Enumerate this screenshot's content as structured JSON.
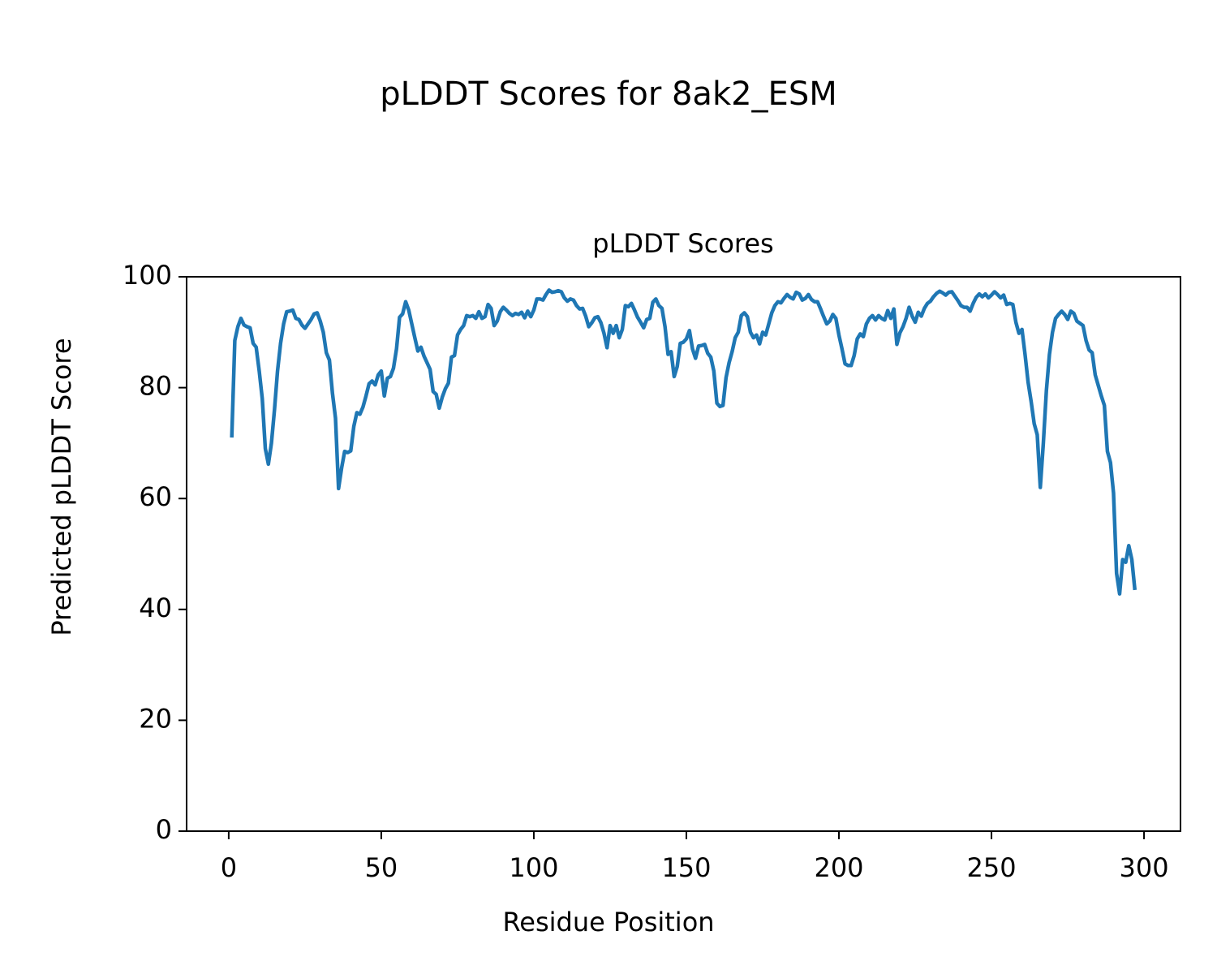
{
  "chart_data": {
    "type": "line",
    "title": "pLDDT Scores for 8ak2_ESM",
    "subtitle": "pLDDT Scores",
    "x_label": "Residue Position",
    "y_label": "Predicted pLDDT Score",
    "x": [
      1,
      2,
      3,
      4,
      5,
      6,
      7,
      8,
      9,
      10,
      11,
      12,
      13,
      14,
      15,
      16,
      17,
      18,
      19,
      20,
      21,
      22,
      23,
      24,
      25,
      26,
      27,
      28,
      29,
      30,
      31,
      32,
      33,
      34,
      35,
      36,
      37,
      38,
      39,
      40,
      41,
      42,
      43,
      44,
      45,
      46,
      47,
      48,
      49,
      50,
      51,
      52,
      53,
      54,
      55,
      56,
      57,
      58,
      59,
      60,
      61,
      62,
      63,
      64,
      65,
      66,
      67,
      68,
      69,
      70,
      71,
      72,
      73,
      74,
      75,
      76,
      77,
      78,
      79,
      80,
      81,
      82,
      83,
      84,
      85,
      86,
      87,
      88,
      89,
      90,
      91,
      92,
      93,
      94,
      95,
      96,
      97,
      98,
      99,
      100,
      101,
      102,
      103,
      104,
      105,
      106,
      107,
      108,
      109,
      110,
      111,
      112,
      113,
      114,
      115,
      116,
      117,
      118,
      119,
      120,
      121,
      122,
      123,
      124,
      125,
      126,
      127,
      128,
      129,
      130,
      131,
      132,
      133,
      134,
      135,
      136,
      137,
      138,
      139,
      140,
      141,
      142,
      143,
      144,
      145,
      146,
      147,
      148,
      149,
      150,
      151,
      152,
      153,
      154,
      155,
      156,
      157,
      158,
      159,
      160,
      161,
      162,
      163,
      164,
      165,
      166,
      167,
      168,
      169,
      170,
      171,
      172,
      173,
      174,
      175,
      176,
      177,
      178,
      179,
      180,
      181,
      182,
      183,
      184,
      185,
      186,
      187,
      188,
      189,
      190,
      191,
      192,
      193,
      194,
      195,
      196,
      197,
      198,
      199,
      200,
      201,
      202,
      203,
      204,
      205,
      206,
      207,
      208,
      209,
      210,
      211,
      212,
      213,
      214,
      215,
      216,
      217,
      218,
      219,
      220,
      221,
      222,
      223,
      224,
      225,
      226,
      227,
      228,
      229,
      230,
      231,
      232,
      233,
      234,
      235,
      236,
      237,
      238,
      239,
      240,
      241,
      242,
      243,
      244,
      245,
      246,
      247,
      248,
      249,
      250,
      251,
      252,
      253,
      254,
      255,
      256,
      257,
      258,
      259,
      260,
      261,
      262,
      263,
      264,
      265,
      266,
      267,
      268,
      269,
      270,
      271,
      272,
      273,
      274,
      275,
      276,
      277,
      278,
      279,
      280,
      281,
      282,
      283,
      284,
      285,
      286,
      287,
      288,
      289,
      290,
      291,
      292,
      293,
      294,
      295,
      296,
      297
    ],
    "series": [
      {
        "color": "#1f77b4",
        "values": [
          71,
          88.5,
          91,
          92.5,
          91.3,
          91,
          90.8,
          88,
          87.3,
          83,
          78,
          69,
          66.2,
          70,
          76,
          83,
          88,
          91.5,
          93.7,
          93.8,
          94,
          92.5,
          92.3,
          91.3,
          90.7,
          91.5,
          92.3,
          93.3,
          93.5,
          92,
          90,
          86.3,
          85,
          79,
          74.5,
          61.8,
          65.5,
          68.5,
          68.3,
          68.6,
          73,
          75.5,
          75.2,
          76.5,
          78.5,
          80.7,
          81.2,
          80.5,
          82.3,
          83,
          78.5,
          81.7,
          82,
          83.5,
          87,
          92.7,
          93.3,
          95.5,
          94,
          91.5,
          89,
          86.6,
          87.3,
          85.7,
          84.5,
          83.3,
          79.3,
          78.8,
          76.3,
          78.3,
          79.8,
          80.8,
          85.5,
          85.8,
          89.5,
          90.5,
          91.2,
          93,
          92.8,
          93,
          92.5,
          93.7,
          92.5,
          92.8,
          95,
          94.3,
          91.2,
          92,
          93.7,
          94.5,
          94,
          93.4,
          93,
          93.4,
          93.2,
          93.6,
          92.6,
          93.8,
          92.8,
          94,
          96,
          96,
          95.8,
          96.8,
          97.6,
          97.2,
          97.3,
          97.5,
          97.3,
          96.2,
          95.6,
          96,
          95.8,
          94.8,
          94.2,
          94.3,
          92.9,
          91,
          91.7,
          92.6,
          92.8,
          91.7,
          89.8,
          87.2,
          91.2,
          89.8,
          91.2,
          89,
          90.5,
          94.8,
          94.6,
          95.2,
          94,
          92.7,
          91.8,
          90.8,
          92.3,
          92.5,
          95.4,
          96,
          94.8,
          94.3,
          91,
          86,
          86.5,
          82,
          83.8,
          88,
          88.2,
          88.8,
          90.3,
          87,
          85.3,
          87.5,
          87.6,
          87.8,
          86.2,
          85.5,
          83,
          77.2,
          76.6,
          76.8,
          81.8,
          84.5,
          86.5,
          89,
          90,
          93,
          93.5,
          92.8,
          90,
          89,
          89.5,
          87.9,
          90,
          89.5,
          91.5,
          93.5,
          94.8,
          95.5,
          95.3,
          96.1,
          96.8,
          96.3,
          96,
          97.2,
          96.9,
          95.8,
          96.1,
          96.8,
          95.9,
          95.5,
          95.5,
          94.2,
          92.8,
          91.5,
          92,
          93.2,
          92.5,
          89.5,
          87,
          84.3,
          84,
          84,
          85.8,
          88.8,
          89.7,
          89.2,
          91.5,
          92.5,
          93,
          92.2,
          93,
          92.5,
          92.2,
          93.9,
          92.5,
          94.2,
          87.8,
          89.9,
          91,
          92.5,
          94.5,
          92.9,
          91.8,
          93.6,
          92.9,
          94.3,
          95.2,
          95.6,
          96.4,
          97,
          97.4,
          97.1,
          96.7,
          97.2,
          97.3,
          96.5,
          95.7,
          94.8,
          94.5,
          94.5,
          93.8,
          95.2,
          96.3,
          96.9,
          96.4,
          96.9,
          96.2,
          96.7,
          97.3,
          96.8,
          96.2,
          96.7,
          95,
          95.2,
          95,
          91.8,
          89.8,
          90.5,
          86,
          81,
          77.5,
          73.5,
          71.5,
          62,
          70,
          79.5,
          86,
          90,
          92.5,
          93.2,
          93.8,
          93.2,
          92.3,
          93.8,
          93.4,
          92,
          91.6,
          91.2,
          88.5,
          86.8,
          86.3,
          82.3,
          80.4,
          78.5,
          76.8,
          68.5,
          66.5,
          61,
          46.5,
          42.8,
          49,
          48.5,
          51.5,
          49,
          43.5
        ]
      }
    ],
    "xlim": [
      -13.8,
      311.95
    ],
    "xticks": [
      0,
      50,
      100,
      150,
      200,
      250,
      300
    ],
    "ylim": [
      0,
      100
    ],
    "yticks": [
      0,
      20,
      40,
      60,
      80,
      100
    ],
    "grid": false
  }
}
